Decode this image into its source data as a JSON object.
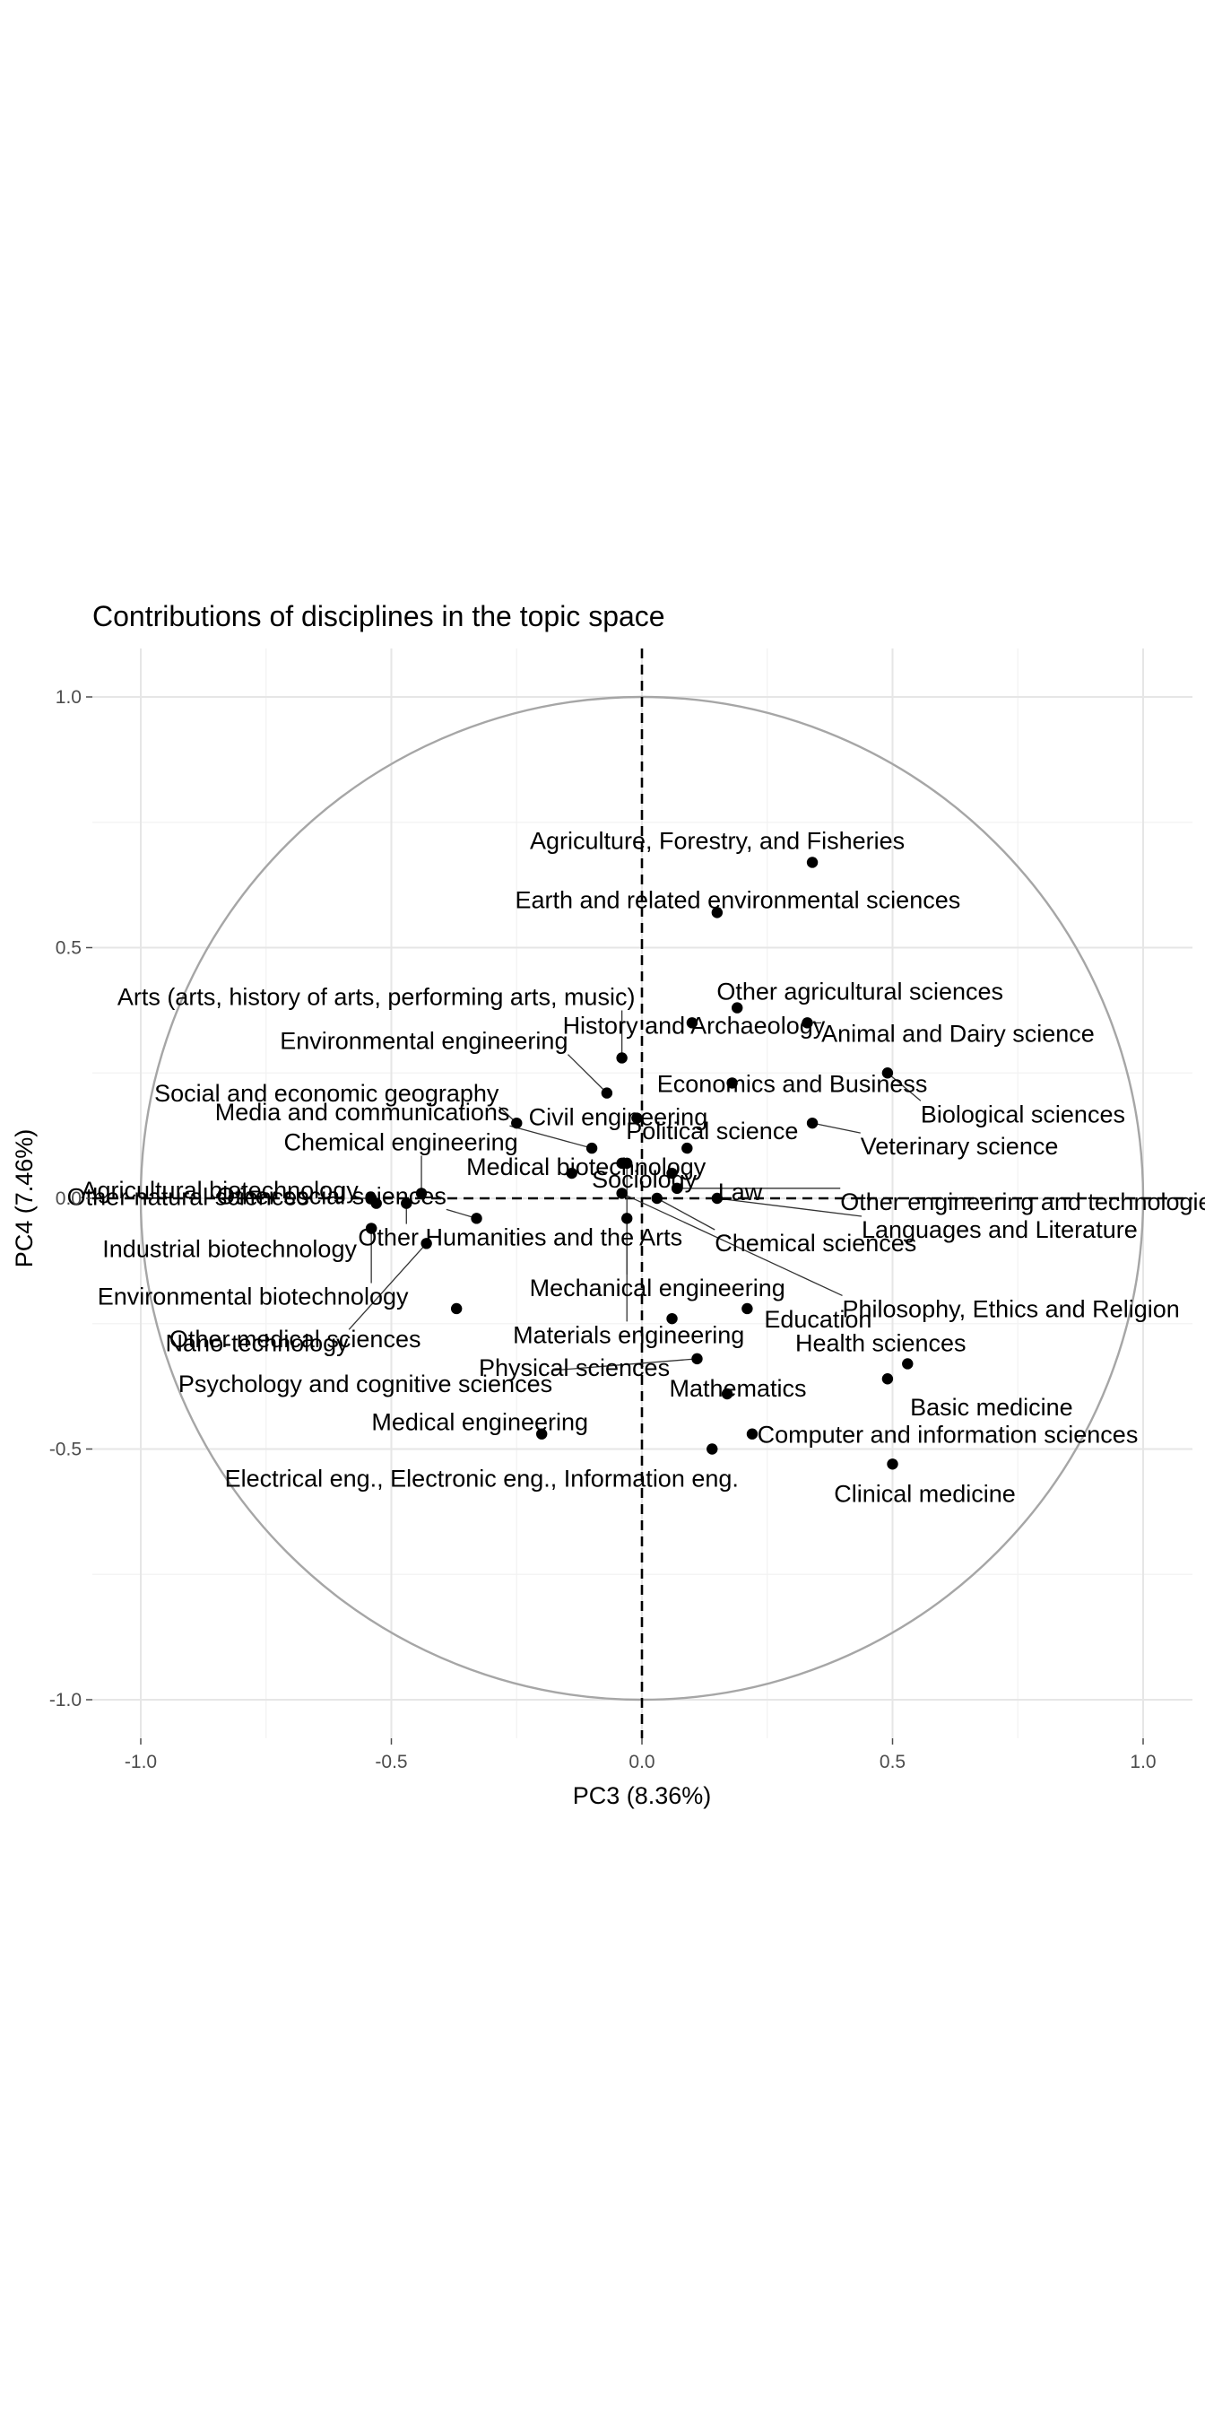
{
  "chart_data": {
    "type": "scatter",
    "title": "Contributions of disciplines in the topic space",
    "xlabel": "PC3 (8.36%)",
    "ylabel": "PC4 (7.46%)",
    "xlim": [
      -1.0,
      1.0
    ],
    "ylim": [
      -1.0,
      1.0
    ],
    "x_ticks": [
      "-1.0",
      "-0.5",
      "0.0",
      "0.5",
      "1.0"
    ],
    "y_ticks": [
      "1.0",
      "0.5",
      "0.0",
      "-0.5",
      "-1.0"
    ],
    "grid": true,
    "unit_circle": true,
    "reference_lines": "dashed at x=0 and y=0",
    "points": [
      {
        "label": "Agriculture, Forestry, and Fisheries",
        "x": 0.34,
        "y": 0.67
      },
      {
        "label": "Earth and related environmental sciences",
        "x": 0.15,
        "y": 0.57
      },
      {
        "label": "Other agricultural sciences",
        "x": 0.19,
        "y": 0.38
      },
      {
        "label": "Animal and Dairy science",
        "x": 0.33,
        "y": 0.35
      },
      {
        "label": "Arts (arts, history of arts, performing arts, music)",
        "x": -0.04,
        "y": 0.28
      },
      {
        "label": "History and Archaeology",
        "x": 0.1,
        "y": 0.35
      },
      {
        "label": "Environmental engineering",
        "x": -0.07,
        "y": 0.21
      },
      {
        "label": "Economics and Business",
        "x": 0.18,
        "y": 0.23
      },
      {
        "label": "Biological sciences",
        "x": 0.49,
        "y": 0.25
      },
      {
        "label": "Media and communications",
        "x": -0.1,
        "y": 0.1
      },
      {
        "label": "Civil engineering",
        "x": -0.01,
        "y": 0.16
      },
      {
        "label": "Political science",
        "x": 0.09,
        "y": 0.1
      },
      {
        "label": "Veterinary science",
        "x": 0.34,
        "y": 0.15
      },
      {
        "label": "Social and economic geography",
        "x": -0.25,
        "y": 0.15
      },
      {
        "label": "Chemical engineering",
        "x": -0.44,
        "y": 0.01
      },
      {
        "label": "Medical biotechnology",
        "x": -0.14,
        "y": 0.05
      },
      {
        "label": "Agricultural biotechnology",
        "x": -0.54,
        "y": 0.0
      },
      {
        "label": "Other social sciences",
        "x": -0.33,
        "y": -0.04
      },
      {
        "label": "Sociology",
        "x": -0.04,
        "y": 0.07
      },
      {
        "label": "Law",
        "x": 0.06,
        "y": 0.05
      },
      {
        "label": "Other engineering and technologies",
        "x": 0.07,
        "y": 0.02
      },
      {
        "label": "Other natural sciences",
        "x": -0.53,
        "y": -0.01
      },
      {
        "label": "Industrial biotechnology",
        "x": -0.54,
        "y": -0.06
      },
      {
        "label": "Other Humanities and the Arts",
        "x": -0.47,
        "y": -0.01
      },
      {
        "label": "Chemical sciences",
        "x": 0.03,
        "y": 0.0
      },
      {
        "label": "Languages and Literature",
        "x": 0.15,
        "y": 0.0
      },
      {
        "label": "Environmental biotechnology",
        "x": -0.54,
        "y": -0.06
      },
      {
        "label": "Mechanical engineering",
        "x": -0.03,
        "y": 0.07
      },
      {
        "label": "Philosophy, Ethics and Religion",
        "x": -0.04,
        "y": 0.01
      },
      {
        "label": "Nano-technology",
        "x": -0.43,
        "y": -0.09
      },
      {
        "label": "Materials engineering",
        "x": -0.03,
        "y": -0.04
      },
      {
        "label": "Education",
        "x": 0.21,
        "y": -0.22
      },
      {
        "label": "Other medical sciences",
        "x": -0.37,
        "y": -0.22
      },
      {
        "label": "Physical sciences",
        "x": 0.06,
        "y": -0.24
      },
      {
        "label": "Health sciences",
        "x": 0.53,
        "y": -0.33
      },
      {
        "label": "Psychology and cognitive sciences",
        "x": 0.11,
        "y": -0.32
      },
      {
        "label": "Mathematics",
        "x": 0.17,
        "y": -0.39
      },
      {
        "label": "Basic medicine",
        "x": 0.49,
        "y": -0.36
      },
      {
        "label": "Medical engineering",
        "x": -0.2,
        "y": -0.47
      },
      {
        "label": "Computer and information sciences",
        "x": 0.22,
        "y": -0.47
      },
      {
        "label": "Electrical eng., Electronic eng., Information eng.",
        "x": 0.14,
        "y": -0.5
      },
      {
        "label": "Clinical medicine",
        "x": 0.5,
        "y": -0.53
      }
    ]
  }
}
